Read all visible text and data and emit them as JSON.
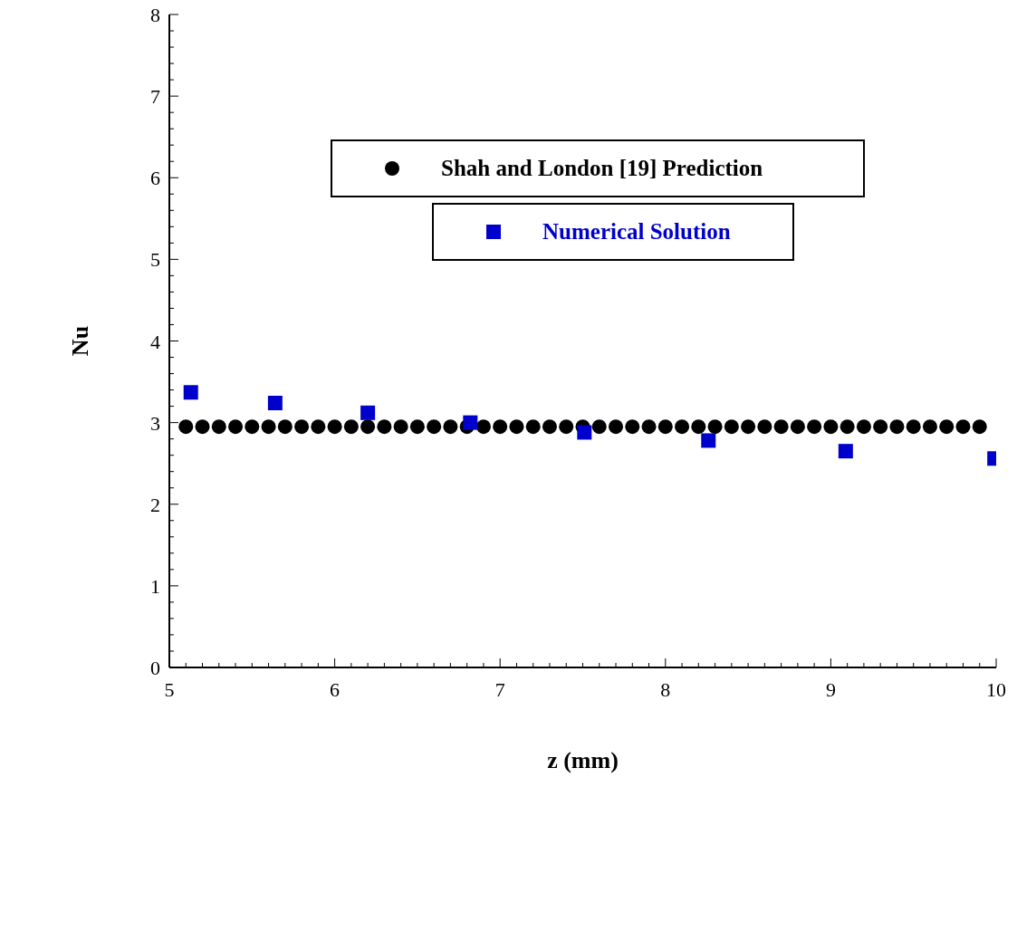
{
  "chart_data": {
    "type": "scatter",
    "xlabel": "z (mm)",
    "ylabel": "Nu",
    "xlim": [
      5,
      10
    ],
    "ylim": [
      0,
      8
    ],
    "xticks": [
      5,
      {
        "value": 5.1,
        "label": null
      },
      {
        "value": 5.2,
        "label": null
      },
      {
        "value": 5.3,
        "label": null
      },
      {
        "value": 5.4,
        "label": null
      },
      {
        "value": 5.5,
        "label": null
      },
      {
        "value": 5.6,
        "label": null
      },
      {
        "value": 5.7,
        "label": null
      },
      {
        "value": 5.8,
        "label": null
      },
      {
        "value": 5.9,
        "label": null
      },
      6,
      {
        "value": 6.1,
        "label": null
      },
      {
        "value": 6.2,
        "label": null
      },
      {
        "value": 6.3,
        "label": null
      },
      {
        "value": 6.4,
        "label": null
      },
      {
        "value": 6.5,
        "label": null
      },
      {
        "value": 6.6,
        "label": null
      },
      {
        "value": 6.7,
        "label": null
      },
      {
        "value": 6.8,
        "label": null
      },
      {
        "value": 6.9,
        "label": null
      },
      7,
      {
        "value": 7.1,
        "label": null
      },
      {
        "value": 7.2,
        "label": null
      },
      {
        "value": 7.3,
        "label": null
      },
      {
        "value": 7.4,
        "label": null
      },
      {
        "value": 7.5,
        "label": null
      },
      {
        "value": 7.6,
        "label": null
      },
      {
        "value": 7.7,
        "label": null
      },
      {
        "value": 7.8,
        "label": null
      },
      {
        "value": 7.9,
        "label": null
      },
      8,
      {
        "value": 8.1,
        "label": null
      },
      {
        "value": 8.2,
        "label": null
      },
      {
        "value": 8.3,
        "label": null
      },
      {
        "value": 8.4,
        "label": null
      },
      {
        "value": 8.5,
        "label": null
      },
      {
        "value": 8.6,
        "label": null
      },
      {
        "value": 8.7,
        "label": null
      },
      {
        "value": 8.8,
        "label": null
      },
      {
        "value": 8.9,
        "label": null
      },
      9,
      {
        "value": 9.1,
        "label": null
      },
      {
        "value": 9.2,
        "label": null
      },
      {
        "value": 9.3,
        "label": null
      },
      {
        "value": 9.4,
        "label": null
      },
      {
        "value": 9.5,
        "label": null
      },
      {
        "value": 9.6,
        "label": null
      },
      {
        "value": 9.7,
        "label": null
      },
      {
        "value": 9.8,
        "label": null
      },
      {
        "value": 9.9,
        "label": null
      },
      10
    ],
    "yticks": [
      0,
      {
        "value": 0.2,
        "label": null
      },
      {
        "value": 0.4,
        "label": null
      },
      {
        "value": 0.6,
        "label": null
      },
      {
        "value": 0.8,
        "label": null
      },
      1,
      {
        "value": 1.2,
        "label": null
      },
      {
        "value": 1.4,
        "label": null
      },
      {
        "value": 1.6,
        "label": null
      },
      {
        "value": 1.8,
        "label": null
      },
      2,
      {
        "value": 2.2,
        "label": null
      },
      {
        "value": 2.4,
        "label": null
      },
      {
        "value": 2.6,
        "label": null
      },
      {
        "value": 2.8,
        "label": null
      },
      3,
      {
        "value": 3.2,
        "label": null
      },
      {
        "value": 3.4,
        "label": null
      },
      {
        "value": 3.6,
        "label": null
      },
      {
        "value": 3.8,
        "label": null
      },
      4,
      {
        "value": 4.2,
        "label": null
      },
      {
        "value": 4.4,
        "label": null
      },
      {
        "value": 4.6,
        "label": null
      },
      {
        "value": 4.8,
        "label": null
      },
      5,
      {
        "value": 5.2,
        "label": null
      },
      {
        "value": 5.4,
        "label": null
      },
      {
        "value": 5.6,
        "label": null
      },
      {
        "value": 5.8,
        "label": null
      },
      6,
      {
        "value": 6.2,
        "label": null
      },
      {
        "value": 6.4,
        "label": null
      },
      {
        "value": 6.6,
        "label": null
      },
      {
        "value": 6.8,
        "label": null
      },
      7,
      {
        "value": 7.2,
        "label": null
      },
      {
        "value": 7.4,
        "label": null
      },
      {
        "value": 7.6,
        "label": null
      },
      {
        "value": 7.8,
        "label": null
      },
      8
    ],
    "legend": "top",
    "series": [
      {
        "name": "Shah and London [19] Prediction",
        "color": "#000000",
        "marker": "circle",
        "x": [
          5.1,
          5.2,
          5.3,
          5.4,
          5.5,
          5.6,
          5.7,
          5.8,
          5.9,
          6.0,
          6.1,
          6.2,
          6.3,
          6.4,
          6.5,
          6.6,
          6.7,
          6.8,
          6.9,
          7.0,
          7.1,
          7.2,
          7.3,
          7.4,
          7.5,
          7.6,
          7.7,
          7.8,
          7.9,
          8.0,
          8.1,
          8.2,
          8.3,
          8.4,
          8.5,
          8.6,
          8.7,
          8.8,
          8.9,
          9.0,
          9.1,
          9.2,
          9.3,
          9.4,
          9.5,
          9.6,
          9.7,
          9.8,
          9.9
        ],
        "values": [
          2.95,
          2.95,
          2.95,
          2.95,
          2.95,
          2.95,
          2.95,
          2.95,
          2.95,
          2.95,
          2.95,
          2.95,
          2.95,
          2.95,
          2.95,
          2.95,
          2.95,
          2.95,
          2.95,
          2.95,
          2.95,
          2.95,
          2.95,
          2.95,
          2.95,
          2.95,
          2.95,
          2.95,
          2.95,
          2.95,
          2.95,
          2.95,
          2.95,
          2.95,
          2.95,
          2.95,
          2.95,
          2.95,
          2.95,
          2.95,
          2.95,
          2.95,
          2.95,
          2.95,
          2.95,
          2.95,
          2.95,
          2.95,
          2.95
        ]
      },
      {
        "name": "Numerical Solution",
        "color": "#0000cc",
        "marker": "square",
        "x": [
          5.13,
          5.64,
          6.2,
          6.82,
          7.51,
          8.26,
          9.09,
          9.99
        ],
        "values": [
          3.37,
          3.24,
          3.12,
          3.0,
          2.88,
          2.78,
          2.65,
          2.56
        ]
      }
    ]
  }
}
